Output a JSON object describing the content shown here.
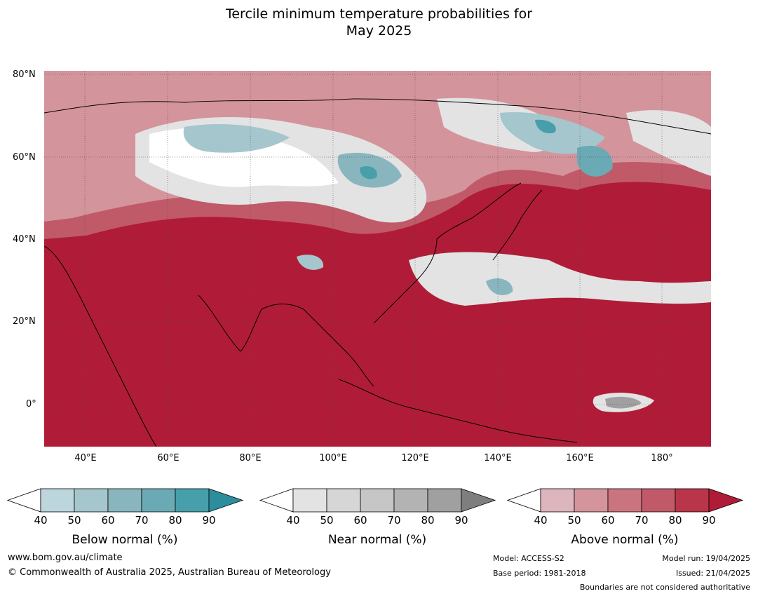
{
  "title_line1": "Tercile minimum temperature probabilities for",
  "title_line2": "May 2025",
  "lat_labels": [
    "80°N",
    "60°N",
    "40°N",
    "20°N",
    "0°"
  ],
  "lon_labels": [
    "40°E",
    "60°E",
    "80°E",
    "100°E",
    "120°E",
    "140°E",
    "160°E",
    "180°"
  ],
  "colorbars": [
    {
      "title": "Below normal (%)",
      "ticks": [
        "40",
        "50",
        "60",
        "70",
        "80",
        "90"
      ],
      "colors": [
        "#ffffff",
        "#bdd5dc",
        "#a5c6cd",
        "#89b6be",
        "#6aaab4",
        "#469faa",
        "#2c8e9c"
      ]
    },
    {
      "title": "Near normal (%)",
      "ticks": [
        "40",
        "50",
        "60",
        "70",
        "80",
        "90"
      ],
      "colors": [
        "#ffffff",
        "#e3e3e3",
        "#d6d6d6",
        "#c6c6c6",
        "#b3b3b3",
        "#a0a0a0",
        "#7e7e7e"
      ]
    },
    {
      "title": "Above normal (%)",
      "ticks": [
        "40",
        "50",
        "60",
        "70",
        "80",
        "90"
      ],
      "colors": [
        "#ffffff",
        "#ddb5bc",
        "#d4949c",
        "#ca7480",
        "#c05a68",
        "#b9354a",
        "#b01c37"
      ]
    }
  ],
  "footer": {
    "website": "www.bom.gov.au/climate",
    "copyright": "© Commonwealth of Australia 2025, Australian Bureau of Meteorology",
    "model": "Model: ACCESS-S2",
    "base_period": "Base period: 1981-2018",
    "model_run": "Model run: 19/04/2025",
    "issued": "Issued: 21/04/2025",
    "boundaries": "Boundaries are not considered authoritative"
  },
  "map_colors": {
    "above_strong": "#b01c37",
    "above_mid": "#c05a68",
    "above_light": "#d4949c",
    "above_faint": "#ddb5bc",
    "near": "#e3e3e3",
    "near_dark": "#a0a0a0",
    "below": "#a5c6cd",
    "below_strong": "#469faa"
  }
}
